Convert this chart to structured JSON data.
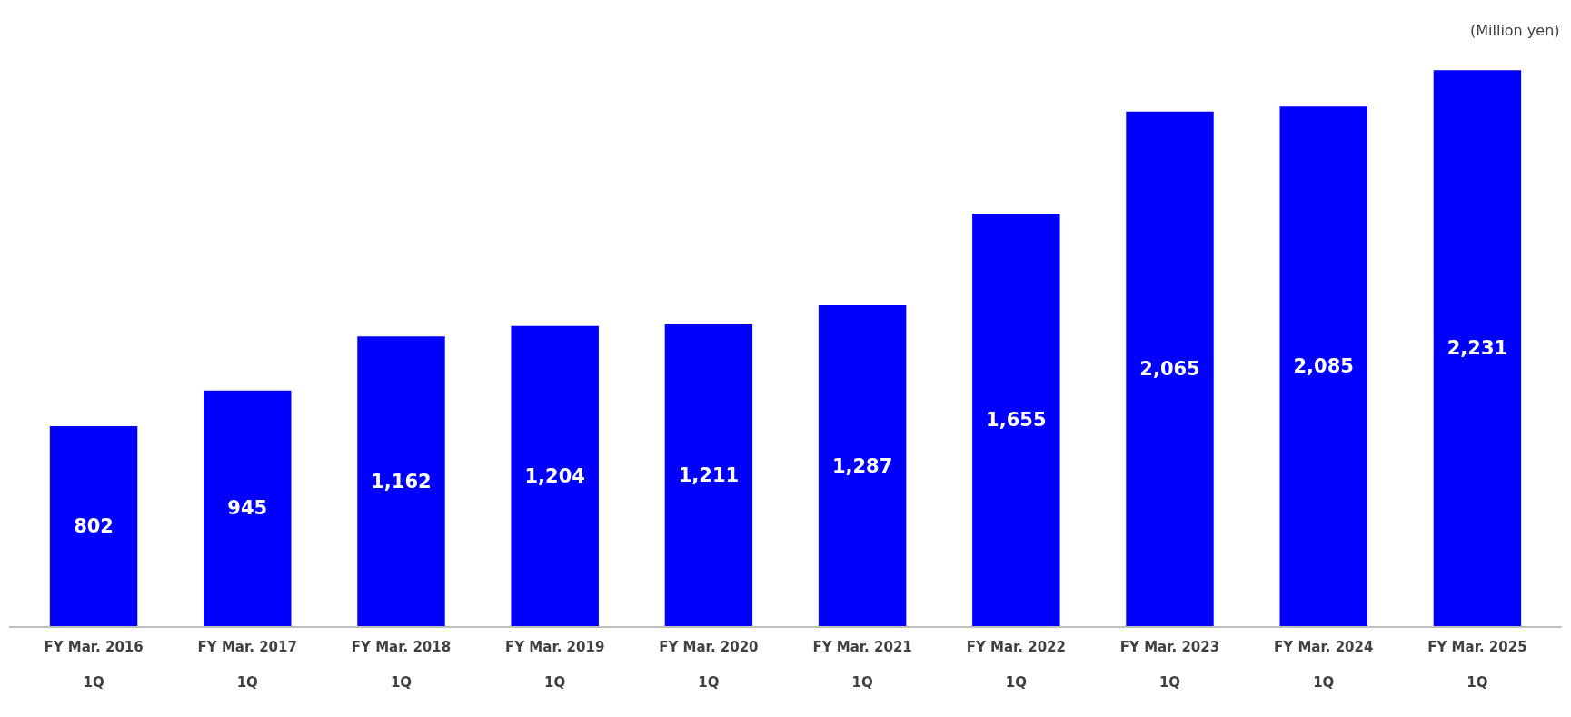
{
  "chart_data": {
    "type": "bar",
    "categories": [
      "FY Mar. 2016\n1Q",
      "FY Mar. 2017\n1Q",
      "FY Mar. 2018\n1Q",
      "FY Mar. 2019\n1Q",
      "FY Mar. 2020\n1Q",
      "FY Mar. 2021\n1Q",
      "FY Mar. 2022\n1Q",
      "FY Mar. 2023\n1Q",
      "FY Mar. 2024\n1Q",
      "FY Mar. 2025\n1Q"
    ],
    "values": [
      802,
      945,
      1162,
      1204,
      1211,
      1287,
      1655,
      2065,
      2085,
      2231
    ],
    "value_labels": [
      "802",
      "945",
      "1,162",
      "1,204",
      "1,211",
      "1,287",
      "1,655",
      "2,065",
      "2,085",
      "2,231"
    ],
    "color": "#0000ff",
    "tick_labels": "x",
    "annotations": [
      "(Million yen)"
    ]
  }
}
